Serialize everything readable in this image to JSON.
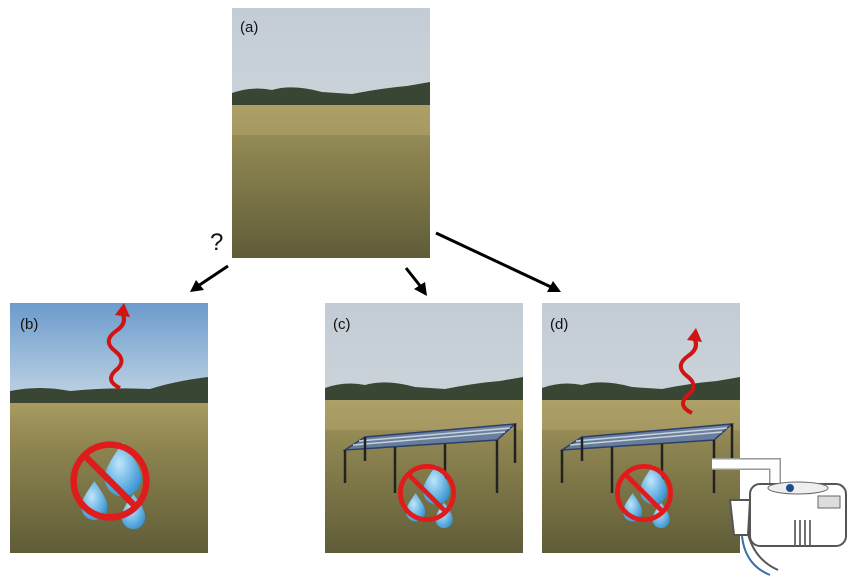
{
  "panels": [
    {
      "label": "(a)"
    },
    {
      "label": "(b)"
    },
    {
      "label": "(c)"
    },
    {
      "label": "(d)"
    }
  ],
  "question": "?"
}
